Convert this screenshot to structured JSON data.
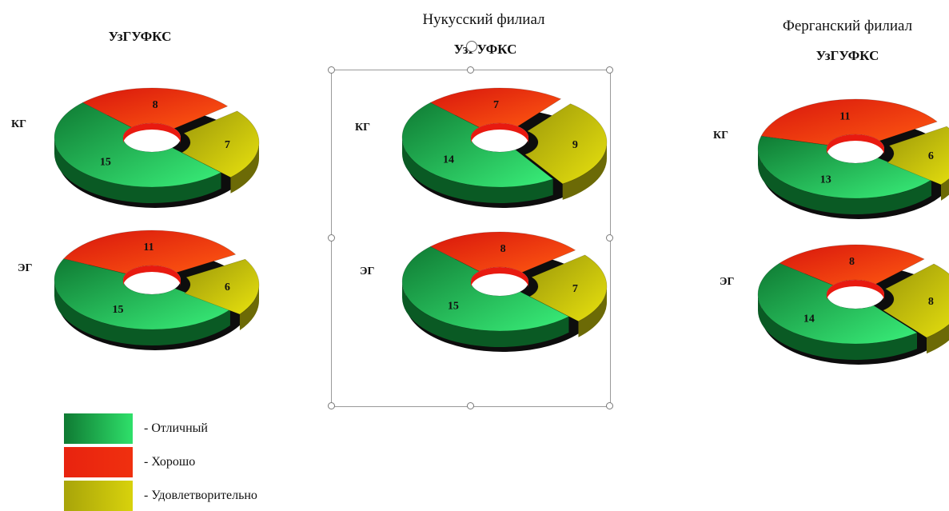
{
  "charts": [
    {
      "title": "",
      "subtitle": "УзГУФКС"
    },
    {
      "title": "Нукусский филиал",
      "subtitle": "УзГУФКС"
    },
    {
      "title": "Ферганский филиал",
      "subtitle": "УзГУФКС"
    }
  ],
  "groups": [
    "КГ",
    "ЭГ"
  ],
  "legend": [
    {
      "label": "- Отличный",
      "color": "#1fbf55"
    },
    {
      "label": "- Хорошо",
      "color": "#e8230f"
    },
    {
      "label": "- Удовлетворительно",
      "color": "#c8c20a"
    }
  ],
  "chart_data": [
    {
      "type": "doughnut-3d",
      "title": "УзГУФКС",
      "categories": [
        "Отличный",
        "Хорошо",
        "Удовлетворительно"
      ],
      "series": [
        {
          "name": "КГ",
          "values": [
            15,
            8,
            7
          ]
        },
        {
          "name": "ЭГ",
          "values": [
            15,
            11,
            6
          ]
        }
      ]
    },
    {
      "type": "doughnut-3d",
      "title": "Нукусский филиал УзГУФКС",
      "categories": [
        "Отличный",
        "Хорошо",
        "Удовлетворительно"
      ],
      "series": [
        {
          "name": "КГ",
          "values": [
            14,
            7,
            9
          ]
        },
        {
          "name": "ЭГ",
          "values": [
            15,
            8,
            7
          ]
        }
      ]
    },
    {
      "type": "doughnut-3d",
      "title": "Ферганский филиал УзГУФКС",
      "categories": [
        "Отличный",
        "Хорошо",
        "Удовлетворительно"
      ],
      "series": [
        {
          "name": "КГ",
          "values": [
            13,
            11,
            6
          ]
        },
        {
          "name": "ЭГ",
          "values": [
            14,
            8,
            8
          ]
        }
      ]
    }
  ]
}
